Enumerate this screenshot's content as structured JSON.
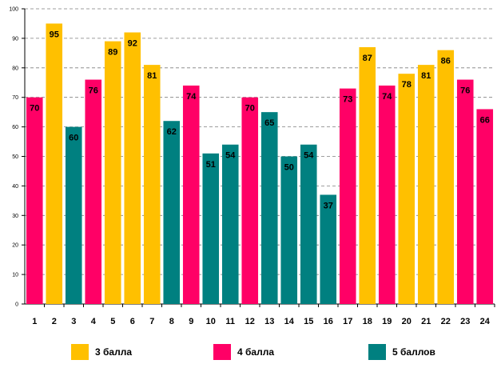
{
  "chart_data": {
    "type": "bar",
    "categories": [
      "1",
      "2",
      "3",
      "4",
      "5",
      "6",
      "7",
      "8",
      "9",
      "10",
      "11",
      "12",
      "13",
      "14",
      "15",
      "16",
      "17",
      "18",
      "19",
      "20",
      "21",
      "22",
      "23",
      "24"
    ],
    "values": [
      70,
      95,
      60,
      76,
      89,
      92,
      81,
      62,
      74,
      51,
      54,
      70,
      65,
      50,
      54,
      37,
      73,
      87,
      74,
      78,
      81,
      86,
      76,
      66
    ],
    "groups": [
      "4",
      "3",
      "5",
      "4",
      "3",
      "3",
      "3",
      "5",
      "4",
      "5",
      "5",
      "4",
      "5",
      "5",
      "5",
      "5",
      "4",
      "3",
      "4",
      "3",
      "3",
      "3",
      "4",
      "4"
    ],
    "yticks": [
      "0",
      "10",
      "20",
      "30",
      "40",
      "50",
      "60",
      "70",
      "80",
      "90",
      "100"
    ],
    "ylim": [
      0,
      100
    ],
    "grid": true,
    "title": "",
    "xlabel": "",
    "ylabel": ""
  },
  "legend": [
    {
      "key": "3",
      "label": "3 балла",
      "color": "#FFC000"
    },
    {
      "key": "4",
      "label": "4 балла",
      "color": "#FF0066"
    },
    {
      "key": "5",
      "label": "5 баллов",
      "color": "#008080"
    }
  ]
}
